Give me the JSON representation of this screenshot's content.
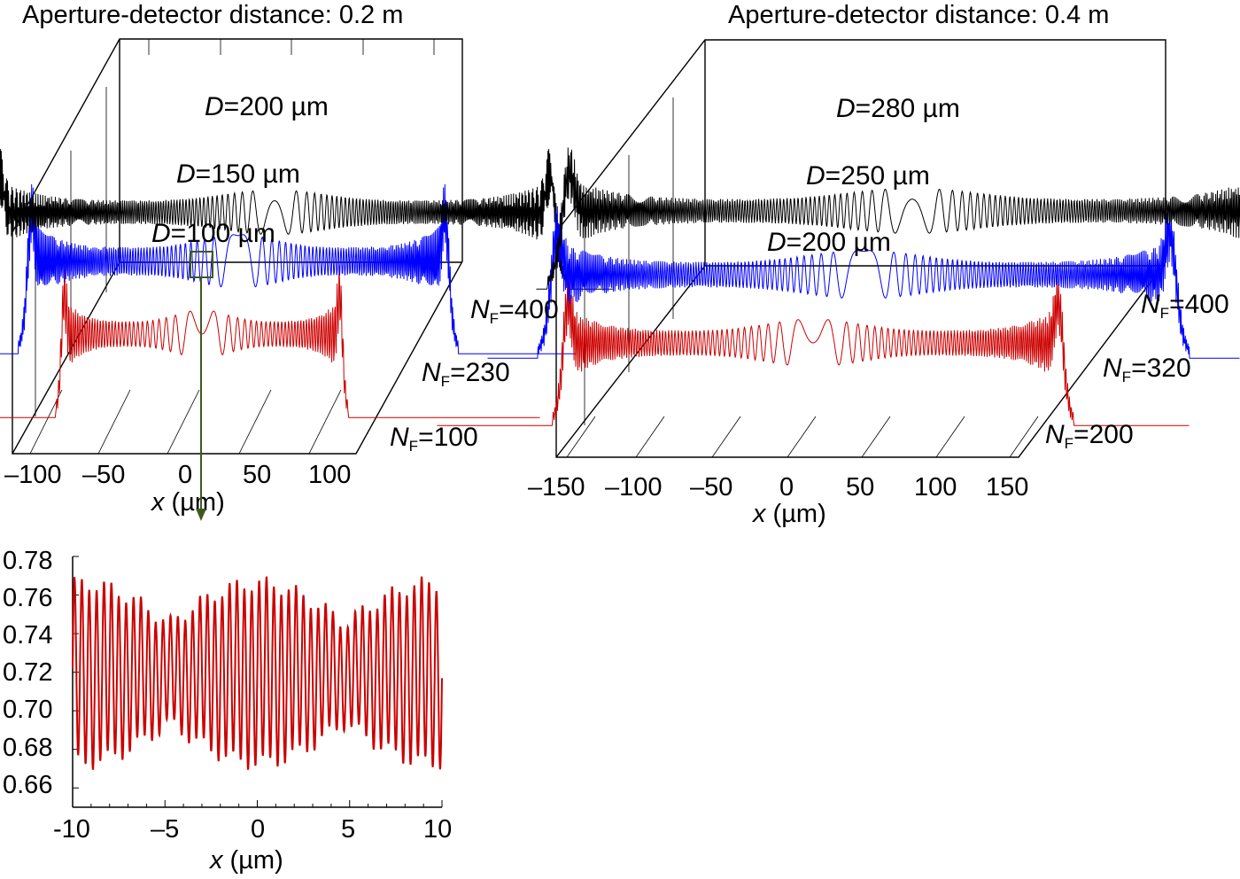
{
  "chart_data": [
    {
      "type": "line",
      "title": "Aperture-detector distance: 0.2 m",
      "xlabel": "x (µm)",
      "x_ticks": [
        "–100",
        "–50",
        "0",
        "50",
        "100"
      ],
      "xlim": [
        -120,
        120
      ],
      "series": [
        {
          "name": "NF=100",
          "label": "D=100 µm",
          "nf_label": "100",
          "aperture_D_um": 100,
          "color": "#cc0000"
        },
        {
          "name": "NF=230",
          "label": "D=150 µm",
          "nf_label": "230",
          "aperture_D_um": 150,
          "color": "#0000ff"
        },
        {
          "name": "NF=400",
          "label": "D=200 µm",
          "nf_label": "400",
          "aperture_D_um": 200,
          "color": "#000000"
        }
      ]
    },
    {
      "type": "line",
      "title": "Aperture-detector distance: 0.4 m",
      "xlabel": "x (µm)",
      "x_ticks": [
        "–150",
        "–100",
        "–50",
        "0",
        "50",
        "100",
        "150"
      ],
      "xlim": [
        -150,
        150
      ],
      "series": [
        {
          "name": "NF=200",
          "label": "D=200 µm",
          "nf_label": "200",
          "aperture_D_um": 200,
          "color": "#cc0000"
        },
        {
          "name": "NF=320",
          "label": "D=250 µm",
          "nf_label": "320",
          "aperture_D_um": 250,
          "color": "#0000ff"
        },
        {
          "name": "NF=400",
          "label": "D=280 µm",
          "nf_label": "400",
          "aperture_D_um": 280,
          "color": "#000000"
        }
      ]
    },
    {
      "type": "line",
      "xlabel": "x (µm)",
      "xlim": [
        -10,
        10
      ],
      "ylim": [
        0.65,
        0.78
      ],
      "x_ticks": [
        "-10",
        "–5",
        "0",
        "5",
        "10"
      ],
      "y_ticks": [
        "0.78",
        "0.76",
        "0.74",
        "0.72",
        "0.70",
        "0.68",
        "0.66"
      ],
      "series": [
        {
          "name": "NF=100",
          "color": "#cc0000",
          "y_min": 0.673,
          "y_max": 0.766,
          "fringe_period_um": 0.4
        }
      ]
    }
  ]
}
